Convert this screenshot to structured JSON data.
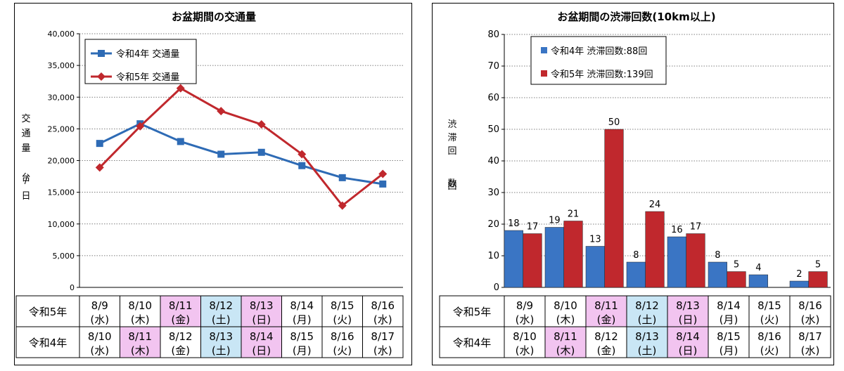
{
  "chart_data": [
    {
      "type": "line",
      "title": "お盆期間の交通量",
      "ylabel_chars": [
        "交",
        "通",
        "量",
        "台",
        "/",
        "日"
      ],
      "ylim": [
        0,
        40000
      ],
      "yticks": [
        "0",
        "5,000",
        "10,000",
        "15,000",
        "20,000",
        "25,000",
        "30,000",
        "35,000",
        "40,000"
      ],
      "grid": true,
      "legend_position": "top-left",
      "series": [
        {
          "name": "令和4年 交通量",
          "color": "#2e6bb5",
          "marker": "square",
          "values": [
            22700,
            25800,
            23000,
            21000,
            21300,
            19200,
            17300,
            16300
          ]
        },
        {
          "name": "令和5年 交通量",
          "color": "#c0282d",
          "marker": "diamond",
          "values": [
            18900,
            25400,
            31400,
            27800,
            25700,
            21000,
            12900,
            17900
          ]
        }
      ],
      "table": {
        "rows": [
          {
            "label": "令和5年",
            "cells": [
              {
                "date": "8/9",
                "day": "(水)",
                "hl": ""
              },
              {
                "date": "8/10",
                "day": "(木)",
                "hl": ""
              },
              {
                "date": "8/11",
                "day": "(金)",
                "hl": "pink"
              },
              {
                "date": "8/12",
                "day": "(土)",
                "hl": "blue"
              },
              {
                "date": "8/13",
                "day": "(日)",
                "hl": "pink"
              },
              {
                "date": "8/14",
                "day": "(月)",
                "hl": ""
              },
              {
                "date": "8/15",
                "day": "(火)",
                "hl": ""
              },
              {
                "date": "8/16",
                "day": "(水)",
                "hl": ""
              }
            ]
          },
          {
            "label": "令和4年",
            "cells": [
              {
                "date": "8/10",
                "day": "(水)",
                "hl": ""
              },
              {
                "date": "8/11",
                "day": "(木)",
                "hl": "pink"
              },
              {
                "date": "8/12",
                "day": "(金)",
                "hl": ""
              },
              {
                "date": "8/13",
                "day": "(土)",
                "hl": "blue"
              },
              {
                "date": "8/14",
                "day": "(日)",
                "hl": "pink"
              },
              {
                "date": "8/15",
                "day": "(月)",
                "hl": ""
              },
              {
                "date": "8/16",
                "day": "(火)",
                "hl": ""
              },
              {
                "date": "8/17",
                "day": "(水)",
                "hl": ""
              }
            ]
          }
        ]
      }
    },
    {
      "type": "bar",
      "title": "お盆期間の渋滞回数(10km以上)",
      "ylabel_chars": [
        "渋",
        "滞",
        "回",
        "数",
        "回"
      ],
      "ylim": [
        0,
        80
      ],
      "yticks": [
        "0",
        "10",
        "20",
        "30",
        "40",
        "50",
        "60",
        "70",
        "80"
      ],
      "grid": true,
      "legend_position": "top-left",
      "series": [
        {
          "name": "令和4年 渋滞回数:88回",
          "color": "#3a75c4",
          "values": [
            18,
            19,
            13,
            8,
            16,
            8,
            4,
            2
          ],
          "labels": [
            "18",
            "19",
            "13",
            "8",
            "16",
            "8",
            "4",
            "2"
          ]
        },
        {
          "name": "令和5年 渋滞回数:139回",
          "color": "#c0282d",
          "values": [
            17,
            21,
            50,
            24,
            17,
            5,
            0,
            5
          ],
          "labels": [
            "17",
            "21",
            "50",
            "24",
            "17",
            "5",
            "",
            "5"
          ]
        }
      ],
      "table": {
        "rows": [
          {
            "label": "令和5年",
            "cells": [
              {
                "date": "8/9",
                "day": "(水)",
                "hl": ""
              },
              {
                "date": "8/10",
                "day": "(木)",
                "hl": ""
              },
              {
                "date": "8/11",
                "day": "(金)",
                "hl": "pink"
              },
              {
                "date": "8/12",
                "day": "(土)",
                "hl": "blue"
              },
              {
                "date": "8/13",
                "day": "(日)",
                "hl": "pink"
              },
              {
                "date": "8/14",
                "day": "(月)",
                "hl": ""
              },
              {
                "date": "8/15",
                "day": "(火)",
                "hl": ""
              },
              {
                "date": "8/16",
                "day": "(水)",
                "hl": ""
              }
            ]
          },
          {
            "label": "令和4年",
            "cells": [
              {
                "date": "8/10",
                "day": "(水)",
                "hl": ""
              },
              {
                "date": "8/11",
                "day": "(木)",
                "hl": "pink"
              },
              {
                "date": "8/12",
                "day": "(金)",
                "hl": ""
              },
              {
                "date": "8/13",
                "day": "(土)",
                "hl": "blue"
              },
              {
                "date": "8/14",
                "day": "(日)",
                "hl": "pink"
              },
              {
                "date": "8/15",
                "day": "(月)",
                "hl": ""
              },
              {
                "date": "8/16",
                "day": "(火)",
                "hl": ""
              },
              {
                "date": "8/17",
                "day": "(水)",
                "hl": ""
              }
            ]
          }
        ]
      }
    }
  ],
  "highlight_colors": {
    "pink": "#f2c4f0",
    "blue": "#c9e6f5"
  }
}
